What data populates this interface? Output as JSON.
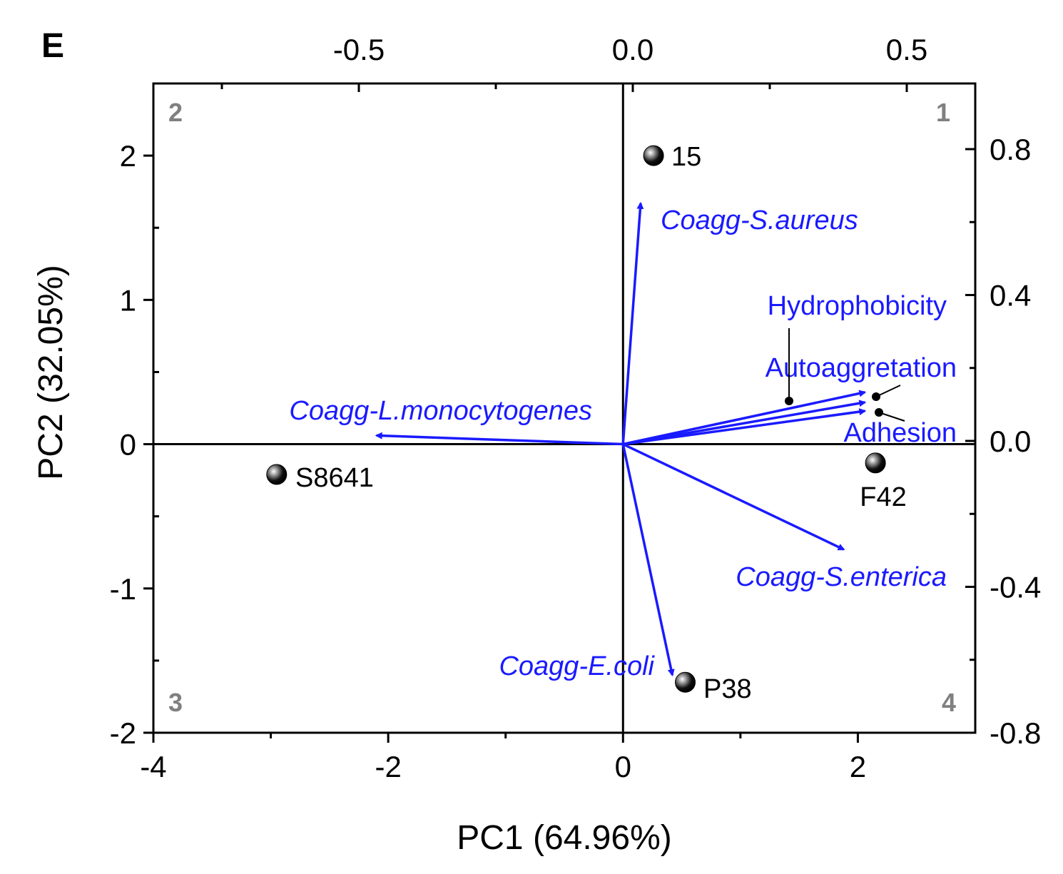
{
  "panel_label": "E",
  "chart_data": {
    "type": "scatter",
    "subtype": "biplot",
    "xlabel": "PC1 (64.96%)",
    "ylabel": "PC2 (32.05%)",
    "xlim": [
      -4,
      3
    ],
    "ylim": [
      -2,
      2.5
    ],
    "x_ticks": [
      "-4",
      "-2",
      "0",
      "2"
    ],
    "y_ticks": [
      "-2",
      "-1",
      "0",
      "1",
      "2"
    ],
    "top_axis": {
      "lim": [
        -0.875,
        0.625
      ],
      "ticks": [
        "-0.5",
        "0.0",
        "0.5"
      ]
    },
    "right_axis": {
      "lim": [
        -0.8,
        0.98
      ],
      "ticks": [
        "0.8",
        "0.4",
        "0.0",
        "-0.4",
        "-0.8"
      ]
    },
    "quadrant_labels": [
      "1",
      "2",
      "3",
      "4"
    ],
    "colors": {
      "vector": "#1a1aff",
      "point": "#000000",
      "quadrant": "#808080"
    },
    "points": [
      {
        "label": "15",
        "x": 0.26,
        "y": 2.0
      },
      {
        "label": "S8641",
        "x": -2.95,
        "y": -0.21
      },
      {
        "label": "F42",
        "x": 2.15,
        "y": -0.13
      },
      {
        "label": "P38",
        "x": 0.53,
        "y": -1.65
      }
    ],
    "vectors": [
      {
        "label": "Coagg-S.aureus",
        "italic": true,
        "x": 0.15,
        "y": 1.67
      },
      {
        "label": "Hydrophobicity",
        "italic": false,
        "x": 2.06,
        "y": 0.36
      },
      {
        "label": "Autoaggretation",
        "italic": false,
        "x": 2.06,
        "y": 0.29
      },
      {
        "label": "Adhesion",
        "italic": false,
        "x": 2.06,
        "y": 0.23
      },
      {
        "label": "Coagg-L.monocytogenes",
        "italic": true,
        "x": -2.1,
        "y": 0.06
      },
      {
        "label": "Coagg-S.enterica",
        "italic": true,
        "x": 1.88,
        "y": -0.73
      },
      {
        "label": "Coagg-E.coli",
        "italic": true,
        "x": 0.42,
        "y": -1.6
      }
    ]
  }
}
